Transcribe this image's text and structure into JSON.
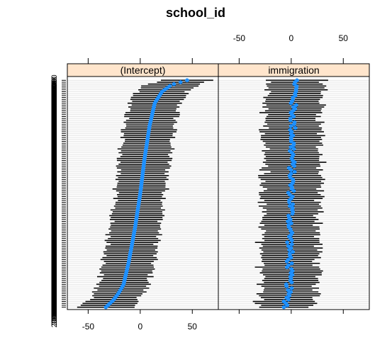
{
  "chart_data": {
    "type": "dotplot",
    "title": "school_id",
    "xlim": [
      -70,
      75
    ],
    "x_ticks": [
      -50,
      0,
      50
    ],
    "x_tick_labels": [
      "-50",
      "0",
      "50"
    ],
    "n_groups": 120,
    "row_label_sample": "200000",
    "panels": [
      {
        "name": "(Intercept)",
        "estimate_profile": {
          "quantiles": [
            0.0,
            0.03,
            0.06,
            0.1,
            0.2,
            0.35,
            0.5,
            0.65,
            0.8,
            0.9,
            0.95,
            0.98,
            1.0
          ],
          "values": [
            -33,
            -26,
            -21,
            -16,
            -11,
            -5,
            0,
            4,
            9,
            14,
            21,
            30,
            45
          ]
        },
        "half_width": 24
      },
      {
        "name": "immigration",
        "estimate_profile": {
          "quantiles": [
            0.0,
            0.1,
            0.3,
            0.5,
            0.7,
            0.9,
            1.0
          ],
          "values": [
            -5,
            -2,
            -1,
            0,
            1,
            2,
            5
          ]
        },
        "half_width": 27
      }
    ],
    "colors": {
      "point": "#1e90ff",
      "interval": "#000000",
      "strip_background": "#ffe5cc",
      "row_gridline": "#e6e6e6",
      "axis": "#000000"
    }
  }
}
